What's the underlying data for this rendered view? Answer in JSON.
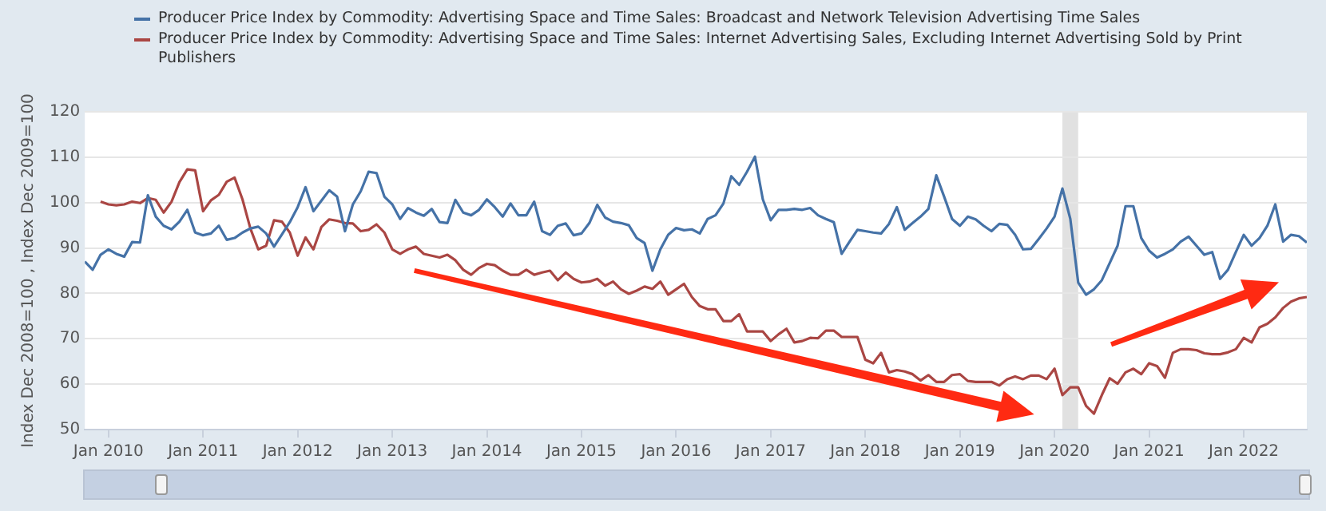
{
  "chart_data": {
    "type": "line",
    "ylabel": "Index Dec 2008=100 , Index Dec 2009=100",
    "legend": "top left",
    "grid": "y",
    "xlim": [
      "2009-10",
      "2022-09"
    ],
    "ylim": [
      50,
      120
    ],
    "yticks": [
      50,
      60,
      70,
      80,
      90,
      100,
      110,
      120
    ],
    "xticks": [
      {
        "value": "2010-01",
        "label": "Jan 2010"
      },
      {
        "value": "2011-01",
        "label": "Jan 2011"
      },
      {
        "value": "2012-01",
        "label": "Jan 2012"
      },
      {
        "value": "2013-01",
        "label": "Jan 2013"
      },
      {
        "value": "2014-01",
        "label": "Jan 2014"
      },
      {
        "value": "2015-01",
        "label": "Jan 2015"
      },
      {
        "value": "2016-01",
        "label": "Jan 2016"
      },
      {
        "value": "2017-01",
        "label": "Jan 2017"
      },
      {
        "value": "2018-01",
        "label": "Jan 2018"
      },
      {
        "value": "2019-01",
        "label": "Jan 2019"
      },
      {
        "value": "2020-01",
        "label": "Jan 2020"
      },
      {
        "value": "2021-01",
        "label": "Jan 2021"
      },
      {
        "value": "2022-01",
        "label": "Jan 2022"
      }
    ],
    "bands": [
      {
        "axis": "x",
        "from": "2020-02",
        "to": "2020-04",
        "color": "#e1e1e1"
      }
    ],
    "x": [
      "2009-10",
      "2009-11",
      "2009-12",
      "2010-01",
      "2010-02",
      "2010-03",
      "2010-04",
      "2010-05",
      "2010-06",
      "2010-07",
      "2010-08",
      "2010-09",
      "2010-10",
      "2010-11",
      "2010-12",
      "2011-01",
      "2011-02",
      "2011-03",
      "2011-04",
      "2011-05",
      "2011-06",
      "2011-07",
      "2011-08",
      "2011-09",
      "2011-10",
      "2011-11",
      "2011-12",
      "2012-01",
      "2012-02",
      "2012-03",
      "2012-04",
      "2012-05",
      "2012-06",
      "2012-07",
      "2012-08",
      "2012-09",
      "2012-10",
      "2012-11",
      "2012-12",
      "2013-01",
      "2013-02",
      "2013-03",
      "2013-04",
      "2013-05",
      "2013-06",
      "2013-07",
      "2013-08",
      "2013-09",
      "2013-10",
      "2013-11",
      "2013-12",
      "2014-01",
      "2014-02",
      "2014-03",
      "2014-04",
      "2014-05",
      "2014-06",
      "2014-07",
      "2014-08",
      "2014-09",
      "2014-10",
      "2014-11",
      "2014-12",
      "2015-01",
      "2015-02",
      "2015-03",
      "2015-04",
      "2015-05",
      "2015-06",
      "2015-07",
      "2015-08",
      "2015-09",
      "2015-10",
      "2015-11",
      "2015-12",
      "2016-01",
      "2016-02",
      "2016-03",
      "2016-04",
      "2016-05",
      "2016-06",
      "2016-07",
      "2016-08",
      "2016-09",
      "2016-10",
      "2016-11",
      "2016-12",
      "2017-01",
      "2017-02",
      "2017-03",
      "2017-04",
      "2017-05",
      "2017-06",
      "2017-07",
      "2017-08",
      "2017-09",
      "2017-10",
      "2017-11",
      "2017-12",
      "2018-01",
      "2018-02",
      "2018-03",
      "2018-04",
      "2018-05",
      "2018-06",
      "2018-07",
      "2018-08",
      "2018-09",
      "2018-10",
      "2018-11",
      "2018-12",
      "2019-01",
      "2019-02",
      "2019-03",
      "2019-04",
      "2019-05",
      "2019-06",
      "2019-07",
      "2019-08",
      "2019-09",
      "2019-10",
      "2019-11",
      "2019-12",
      "2020-01",
      "2020-02",
      "2020-03",
      "2020-04",
      "2020-05",
      "2020-06",
      "2020-07",
      "2020-08",
      "2020-09",
      "2020-10",
      "2020-11",
      "2020-12",
      "2021-01",
      "2021-02",
      "2021-03",
      "2021-04",
      "2021-05",
      "2021-06",
      "2021-07",
      "2021-08",
      "2021-09",
      "2021-10",
      "2021-11",
      "2021-12",
      "2022-01",
      "2022-02",
      "2022-03",
      "2022-04",
      "2022-05",
      "2022-06",
      "2022-07",
      "2022-08",
      "2022-09"
    ],
    "series": [
      {
        "name": "Producer Price Index by Commodity: Advertising Space and Time Sales: Broadcast and Network Television Advertising Time Sales",
        "color": "#4572a7",
        "values": [
          87,
          85.2,
          88.5,
          89.7,
          88.7,
          88.1,
          91.3,
          91.2,
          101.6,
          96.9,
          94.9,
          94.1,
          95.8,
          98.4,
          93.4,
          92.8,
          93.2,
          94.9,
          91.8,
          92.2,
          93.4,
          94.3,
          94.7,
          93.2,
          90.3,
          93,
          95.7,
          99,
          103.4,
          98.1,
          100.4,
          102.7,
          101.3,
          93.7,
          99.6,
          102.5,
          106.8,
          106.5,
          101.3,
          99.6,
          96.4,
          98.8,
          97.8,
          97.1,
          98.6,
          95.7,
          95.5,
          100.6,
          97.8,
          97.2,
          98.4,
          100.7,
          99,
          96.9,
          99.8,
          97.2,
          97.2,
          100.2,
          93.7,
          92.9,
          94.9,
          95.4,
          92.8,
          93.2,
          95.5,
          99.5,
          96.7,
          95.8,
          95.5,
          95,
          92.2,
          91.1,
          85,
          89.7,
          92.9,
          94.4,
          93.9,
          94.1,
          93.2,
          96.4,
          97.2,
          99.8,
          105.8,
          103.9,
          106.8,
          110.1,
          100.7,
          96.1,
          98.4,
          98.4,
          98.6,
          98.4,
          98.8,
          97.2,
          96.4,
          95.7,
          88.7,
          91.4,
          94,
          93.7,
          93.4,
          93.2,
          95.3,
          99,
          94,
          95.5,
          96.9,
          98.6,
          106,
          101.3,
          96.4,
          94.9,
          96.9,
          96.3,
          94.9,
          93.7,
          95.3,
          95.1,
          92.9,
          89.7,
          89.8,
          92,
          94.3,
          96.9,
          103.1,
          96.4,
          82.4,
          79.7,
          80.9,
          82.9,
          86.7,
          90.5,
          99.2,
          99.2,
          92.2,
          89.4,
          87.9,
          88.7,
          89.7,
          91.4,
          92.5,
          90.5,
          88.5,
          89.1,
          83.2,
          85.2,
          89.1,
          92.9,
          90.5,
          92.2,
          94.9,
          99.6,
          91.4,
          92.9,
          92.6,
          91.2
        ]
      },
      {
        "name": "Producer Price Index by Commodity: Advertising Space and Time Sales: Internet Advertising Sales, Excluding Internet Advertising Sold by Print Publishers",
        "color": "#aa4643",
        "values": [
          null,
          null,
          100.2,
          99.6,
          99.4,
          99.6,
          100.2,
          99.9,
          101,
          100.6,
          97.8,
          100.2,
          104.5,
          107.3,
          107.1,
          98.1,
          100.5,
          101.7,
          104.6,
          105.5,
          100.7,
          94.3,
          89.7,
          90.5,
          96.1,
          95.8,
          93.4,
          88.3,
          92.3,
          89.7,
          94.6,
          96.3,
          96,
          95.5,
          95.4,
          93.7,
          94,
          95.2,
          93.4,
          89.7,
          88.7,
          89.7,
          90.3,
          88.7,
          88.3,
          87.9,
          88.5,
          87.3,
          85.2,
          84.1,
          85.6,
          86.5,
          86.2,
          85,
          84.1,
          84.1,
          85.2,
          84.1,
          84.6,
          85,
          82.9,
          84.6,
          83.2,
          82.4,
          82.6,
          83.2,
          81.7,
          82.6,
          80.9,
          79.9,
          80.6,
          81.5,
          81,
          82.6,
          79.7,
          80.9,
          82.1,
          79.2,
          77.2,
          76.5,
          76.5,
          73.9,
          73.9,
          75.4,
          71.6,
          71.6,
          71.6,
          69.5,
          71,
          72.2,
          69.2,
          69.5,
          70.2,
          70.1,
          71.8,
          71.8,
          70.4,
          70.4,
          70.4,
          65.4,
          64.6,
          66.9,
          62.6,
          63.1,
          62.8,
          62.2,
          60.8,
          62,
          60.5,
          60.5,
          62,
          62.2,
          60.7,
          60.5,
          60.5,
          60.5,
          59.7,
          61.1,
          61.7,
          61.1,
          61.9,
          61.9,
          61.1,
          63.4,
          57.6,
          59.3,
          59.3,
          55.2,
          53.5,
          57.6,
          61.3,
          60.1,
          62.6,
          63.4,
          62.2,
          64.6,
          64,
          61.4,
          66.9,
          67.7,
          67.7,
          67.5,
          66.8,
          66.6,
          66.6,
          67,
          67.7,
          70.2,
          69.2,
          72.5,
          73.3,
          74.7,
          76.8,
          78.2,
          78.9,
          79.2
        ]
      }
    ]
  }
}
